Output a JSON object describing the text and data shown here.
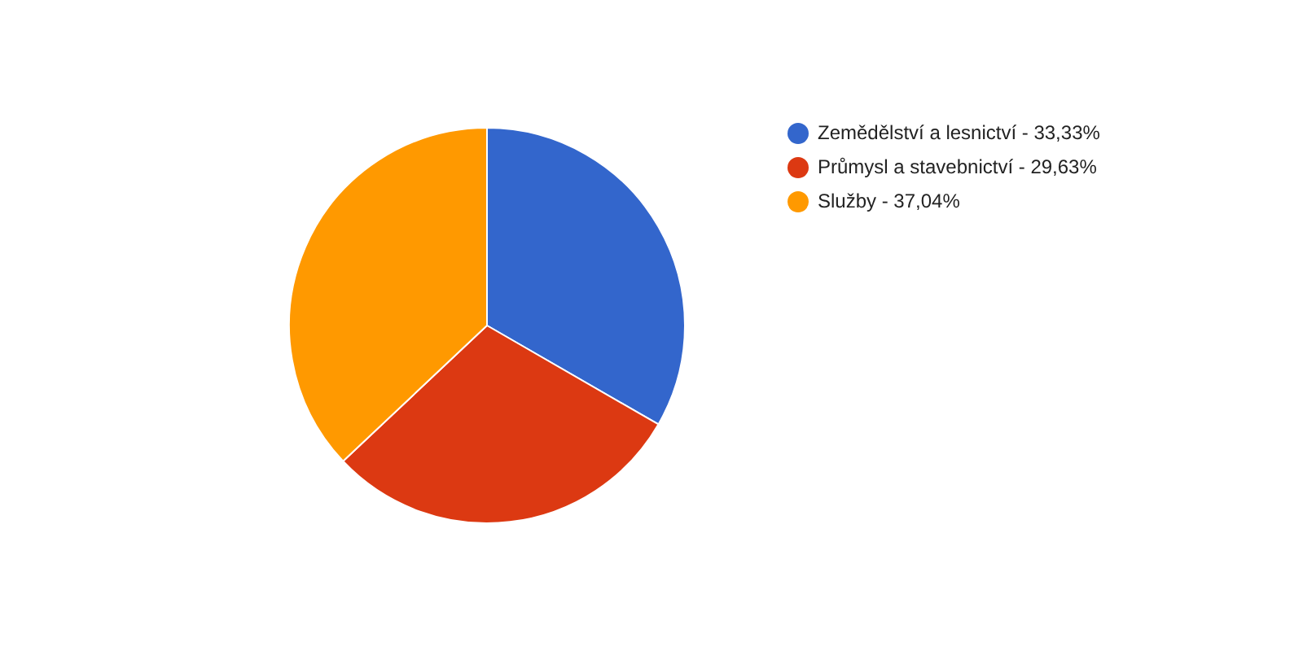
{
  "chart_data": {
    "type": "pie",
    "categories": [
      "Zemědělství a lesnictví - 33,33%",
      "Průmysl a stavebnictví - 29,63%",
      "Služby - 37,04%"
    ],
    "values": [
      33.33,
      29.63,
      37.04
    ],
    "colors": [
      "#3366cc",
      "#dc3912",
      "#ff9900"
    ],
    "legend": "right"
  }
}
